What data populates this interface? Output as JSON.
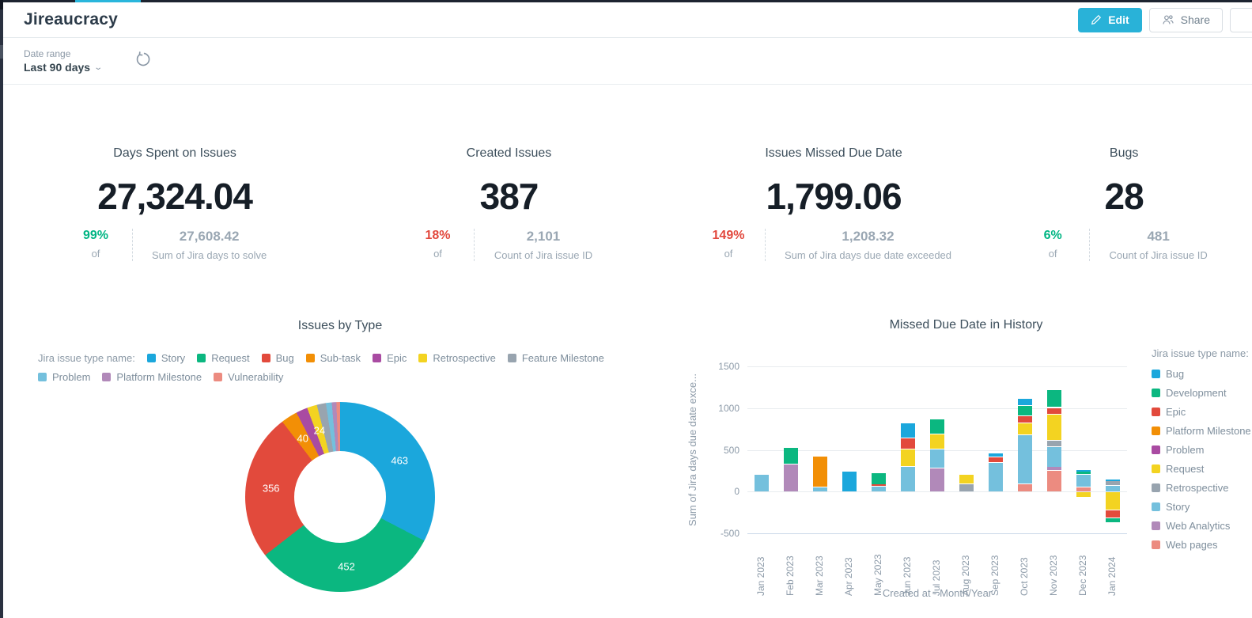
{
  "chrome": {
    "tab_accent_color": "#29b6dc"
  },
  "header": {
    "title": "Jireaucracy",
    "edit_button": "Edit",
    "share_button": "Share"
  },
  "filter": {
    "label": "Date range",
    "value": "Last 90 days"
  },
  "status_colors": {
    "good": "#00b583",
    "bad": "#e2483d"
  },
  "kpis": [
    {
      "title": "Days Spent on Issues",
      "value": "27,324.04",
      "percent": "99%",
      "percent_color": "#00b583",
      "of": "of",
      "target": "27,608.42",
      "target_label": "Sum of Jira days to solve"
    },
    {
      "title": "Created Issues",
      "value": "387",
      "percent": "18%",
      "percent_color": "#e2483d",
      "of": "of",
      "target": "2,101",
      "target_label": "Count of Jira issue ID"
    },
    {
      "title": "Issues Missed Due Date",
      "value": "1,799.06",
      "percent": "149%",
      "percent_color": "#e2483d",
      "of": "of",
      "target": "1,208.32",
      "target_label": "Sum of Jira days due date exceeded"
    },
    {
      "title": "Bugs",
      "value": "28",
      "percent": "6%",
      "percent_color": "#00b583",
      "of": "of",
      "target": "481",
      "target_label": "Count of Jira issue ID"
    }
  ],
  "palette": {
    "blue": "#1ba7dc",
    "green": "#0bb780",
    "red": "#e24a3c",
    "orange": "#f28f06",
    "purple": "#a94ba2",
    "yellow": "#f3d321",
    "gray": "#98a4af",
    "lightblue": "#74c0dd",
    "mauve": "#b189b9",
    "salmon": "#ec8b80"
  },
  "chart_data": [
    {
      "type": "pie",
      "title": "Issues by Type",
      "legend_title": "Jira issue type name:",
      "legend_position": "top",
      "donut": true,
      "slices": [
        {
          "name": "Story",
          "value": 463,
          "color": "#1ba7dc",
          "labeled": true
        },
        {
          "name": "Request",
          "value": 452,
          "color": "#0bb780",
          "labeled": true
        },
        {
          "name": "Bug",
          "value": 356,
          "color": "#e24a3c",
          "labeled": true
        },
        {
          "name": "Sub-task",
          "value": 40,
          "color": "#f28f06",
          "labeled": true
        },
        {
          "name": "Epic",
          "value": 28,
          "color": "#a94ba2",
          "labeled": false
        },
        {
          "name": "Retrospective",
          "value": 24,
          "color": "#f3d321",
          "labeled": true
        },
        {
          "name": "Feature Milestone",
          "value": 22,
          "color": "#98a4af",
          "labeled": false
        },
        {
          "name": "Problem",
          "value": 14,
          "color": "#74c0dd",
          "labeled": false
        },
        {
          "name": "Platform Milestone",
          "value": 11,
          "color": "#b189b9",
          "labeled": false
        },
        {
          "name": "Vulnerability",
          "value": 9,
          "color": "#ec8b80",
          "labeled": false
        }
      ]
    },
    {
      "type": "bar",
      "stacked": true,
      "title": "Missed Due Date in History",
      "xlabel": "Created at - Month/Year",
      "ylabel": "Sum of Jira days due date exce...",
      "yticks": [
        1500,
        1000,
        500,
        0,
        -500
      ],
      "ylim": [
        -500,
        1500
      ],
      "grid": true,
      "legend_title": "Jira issue type name:",
      "legend_position": "right",
      "legend": [
        {
          "name": "Bug",
          "color": "#1ba7dc"
        },
        {
          "name": "Development",
          "color": "#0bb780"
        },
        {
          "name": "Epic",
          "color": "#e24a3c"
        },
        {
          "name": "Platform Milestone",
          "color": "#f28f06"
        },
        {
          "name": "Problem",
          "color": "#a94ba2"
        },
        {
          "name": "Request",
          "color": "#f3d321"
        },
        {
          "name": "Retrospective",
          "color": "#98a4af"
        },
        {
          "name": "Story",
          "color": "#74c0dd"
        },
        {
          "name": "Web Analytics",
          "color": "#b189b9"
        },
        {
          "name": "Web pages",
          "color": "#ec8b80"
        }
      ],
      "months": [
        {
          "label": "Jan 2023",
          "positive": [
            [
              "Story",
              210
            ]
          ],
          "negative": []
        },
        {
          "label": "Feb 2023",
          "positive": [
            [
              "Web Analytics",
              330
            ],
            [
              "Development",
              200
            ]
          ],
          "negative": []
        },
        {
          "label": "Mar 2023",
          "positive": [
            [
              "Story",
              60
            ],
            [
              "Platform Milestone",
              370
            ]
          ],
          "negative": []
        },
        {
          "label": "Apr 2023",
          "positive": [
            [
              "Bug",
              253
            ]
          ],
          "negative": []
        },
        {
          "label": "May 2023",
          "positive": [
            [
              "Story",
              68
            ],
            [
              "Epic",
              18
            ],
            [
              "Development",
              148
            ]
          ],
          "negative": []
        },
        {
          "label": "Jun 2023",
          "positive": [
            [
              "Story",
              308
            ],
            [
              "Request",
              204
            ],
            [
              "Epic",
              136
            ],
            [
              "Bug",
              179
            ]
          ],
          "negative": []
        },
        {
          "label": "Jul 2023",
          "positive": [
            [
              "Web Analytics",
              283
            ],
            [
              "Story",
              229
            ],
            [
              "Request",
              179
            ],
            [
              "Development",
              182
            ]
          ],
          "negative": []
        },
        {
          "label": "Aug 2023",
          "positive": [
            [
              "Retrospective",
              94
            ],
            [
              "Request",
              120
            ]
          ],
          "negative": []
        },
        {
          "label": "Sep 2023",
          "positive": [
            [
              "Story",
              355
            ],
            [
              "Epic",
              60
            ],
            [
              "Bug",
              44
            ]
          ],
          "negative": []
        },
        {
          "label": "Oct 2023",
          "positive": [
            [
              "Web pages",
              94
            ],
            [
              "Story",
              591
            ],
            [
              "Request",
              141
            ],
            [
              "Epic",
              85
            ],
            [
              "Development",
              126
            ],
            [
              "Bug",
              88
            ]
          ],
          "negative": []
        },
        {
          "label": "Nov 2023",
          "positive": [
            [
              "Web pages",
              258
            ],
            [
              "Web Analytics",
              38
            ],
            [
              "Story",
              245
            ],
            [
              "Retrospective",
              75
            ],
            [
              "Request",
              314
            ],
            [
              "Epic",
              82
            ],
            [
              "Development",
              214
            ]
          ],
          "negative": []
        },
        {
          "label": "Dec 2023",
          "positive": [
            [
              "Web pages",
              60
            ],
            [
              "Story",
              151
            ],
            [
              "Development",
              25
            ],
            [
              "Bug",
              22
            ]
          ],
          "negative": [
            [
              "Request",
              63
            ]
          ]
        },
        {
          "label": "Jan 2024",
          "positive": [
            [
              "Story",
              79
            ],
            [
              "Retrospective",
              44
            ],
            [
              "Bug",
              19
            ]
          ],
          "negative": [
            [
              "Request",
              220
            ],
            [
              "Epic",
              94
            ],
            [
              "Development",
              57
            ]
          ]
        }
      ]
    }
  ]
}
